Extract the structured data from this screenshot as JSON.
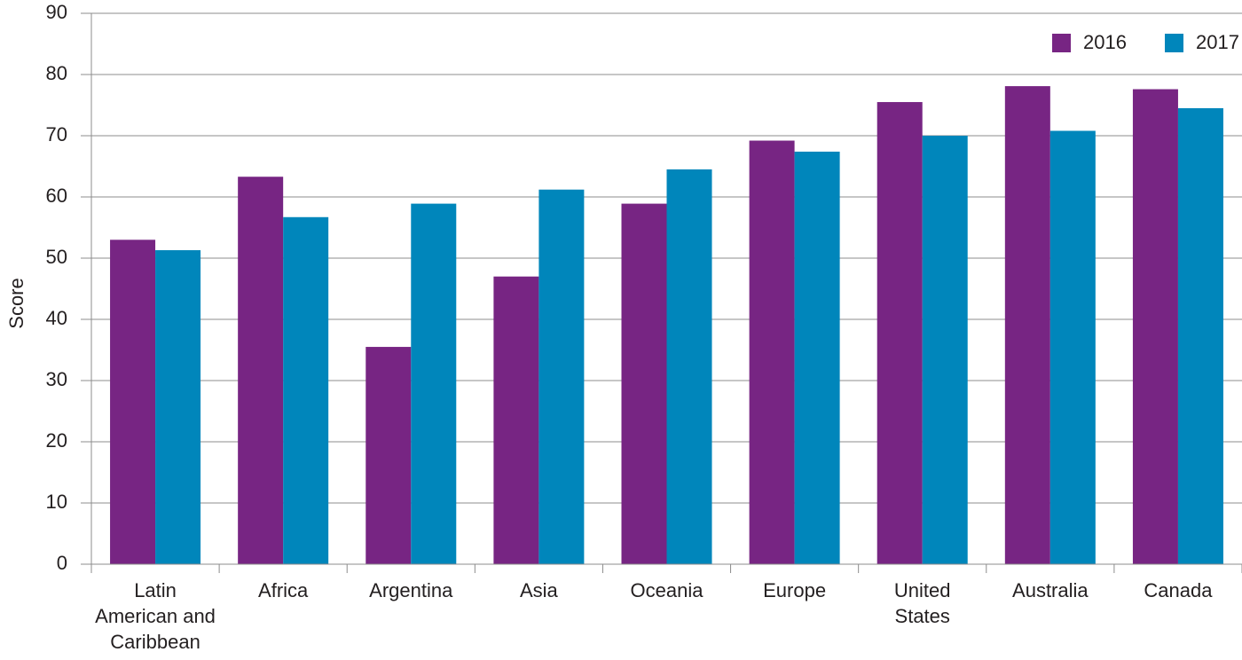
{
  "chart_data": {
    "type": "bar",
    "ylabel": "Score",
    "ylim": [
      0,
      90
    ],
    "yticks": [
      "0",
      "10",
      "20",
      "30",
      "40",
      "50",
      "60",
      "70",
      "80",
      "90"
    ],
    "grid": true,
    "legend_position": "top-right",
    "categories": [
      [
        "Latin",
        "American and",
        "Caribbean"
      ],
      [
        "Africa"
      ],
      [
        "Argentina"
      ],
      [
        "Asia"
      ],
      [
        "Oceania"
      ],
      [
        "Europe"
      ],
      [
        "United",
        "States"
      ],
      [
        "Australia"
      ],
      [
        "Canada"
      ]
    ],
    "series": [
      {
        "name": "2016",
        "color": "#772583",
        "values": [
          53.0,
          63.3,
          35.5,
          47.0,
          58.9,
          69.2,
          75.5,
          78.1,
          77.6
        ]
      },
      {
        "name": "2017",
        "color": "#0086bb",
        "values": [
          51.3,
          56.7,
          58.9,
          61.2,
          64.5,
          67.4,
          70.0,
          70.8,
          74.5
        ]
      }
    ]
  }
}
